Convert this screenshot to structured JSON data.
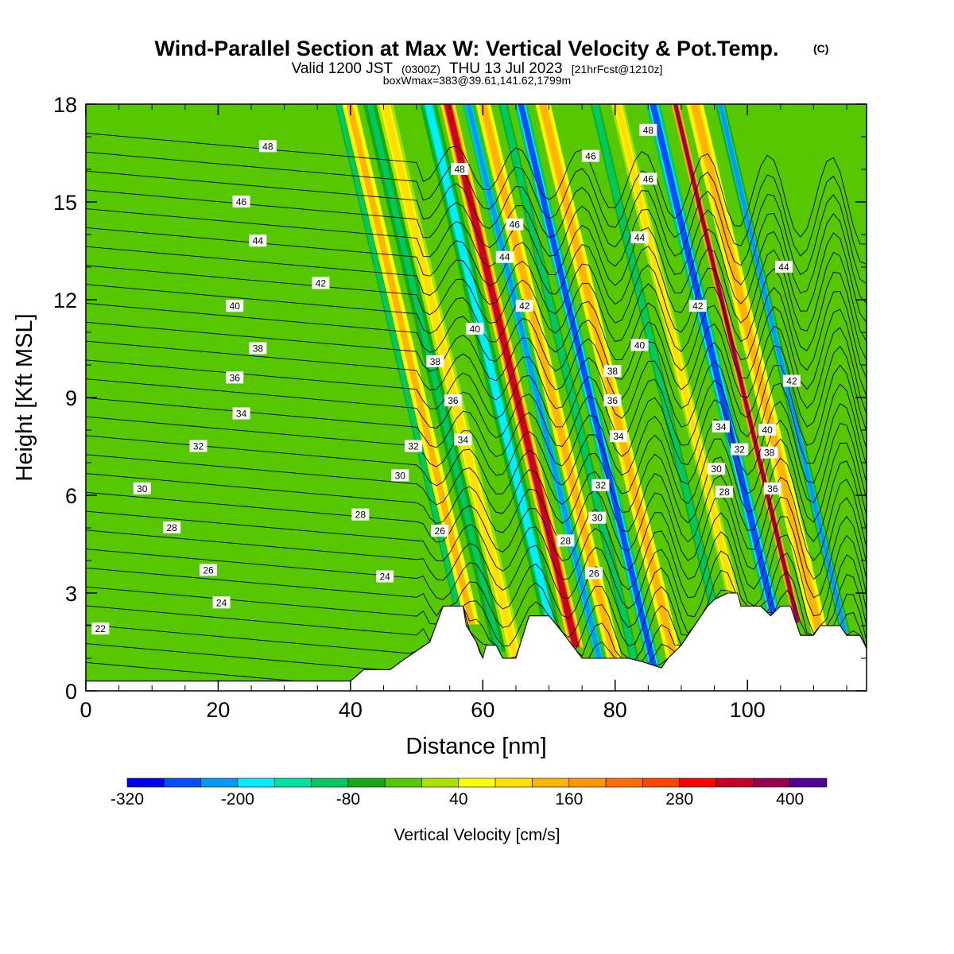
{
  "header": {
    "title": "Wind-Parallel Section at Max W: Vertical Velocity & Pot.Temp.",
    "title_mark": "(C)",
    "valid_prefix": "Valid 1200 JST",
    "valid_utc": "(0300Z)",
    "valid_date": "THU 13 Jul 2023",
    "forecast_info": "[21hrFcst@1210z]",
    "box_info": "boxWmax=383@39.61,141.62,1799m"
  },
  "chart_data": {
    "type": "heatmap",
    "xlabel": "Distance [nm]",
    "ylabel": "Height [Kft MSL]",
    "xlim": [
      0,
      118
    ],
    "ylim": [
      0,
      18
    ],
    "x_ticks": [
      0,
      20,
      40,
      60,
      80,
      100
    ],
    "y_ticks": [
      0,
      3,
      6,
      9,
      12,
      15,
      18
    ],
    "colorbar": {
      "title": "Vertical Velocity [cm/s]",
      "levels": [
        -320,
        -280,
        -240,
        -200,
        -160,
        -120,
        -80,
        -40,
        0,
        40,
        80,
        120,
        160,
        200,
        240,
        280,
        320,
        360,
        400,
        440
      ],
      "tick_labels": [
        -320,
        -200,
        -80,
        40,
        160,
        280,
        400
      ],
      "colors": [
        "#0000ee",
        "#0050ff",
        "#0099ff",
        "#00eeff",
        "#00e0a0",
        "#00c860",
        "#14aa14",
        "#55c800",
        "#aae100",
        "#ffff00",
        "#ffe000",
        "#ffb400",
        "#ff9600",
        "#ff6e00",
        "#ff4600",
        "#ff0000",
        "#c80028",
        "#960050",
        "#500096"
      ]
    },
    "vertical_velocity_bands": [
      {
        "x": 0,
        "w": 10,
        "h": 9
      },
      {
        "x": 9,
        "w": 2.5,
        "h": 6
      },
      {
        "x": 23,
        "w": 3,
        "h": 12
      },
      {
        "x": 30,
        "w": 1.5,
        "h": 12
      },
      {
        "x": 47,
        "w": 6,
        "h": 15
      },
      {
        "x": 55.5,
        "w": 1.8,
        "h": -90
      },
      {
        "x": 57.3,
        "w": 2.2,
        "h": 120
      },
      {
        "x": 61.5,
        "w": 2,
        "h": -120
      },
      {
        "x": 64,
        "w": 2.5,
        "h": 100
      },
      {
        "x": 69,
        "w": 2.5,
        "h": -180
      },
      {
        "x": 73,
        "w": 2.2,
        "h": 320
      },
      {
        "x": 77,
        "w": 1.7,
        "h": -240
      },
      {
        "x": 79,
        "w": 2.2,
        "h": 150
      },
      {
        "x": 82,
        "w": 2.2,
        "h": -100
      },
      {
        "x": 85,
        "w": 2,
        "h": -260
      },
      {
        "x": 88,
        "w": 2.3,
        "h": 150
      },
      {
        "x": 94,
        "w": 2.2,
        "h": -90
      },
      {
        "x": 97,
        "w": 2,
        "h": 110
      },
      {
        "x": 103,
        "w": 2.2,
        "h": -280
      },
      {
        "x": 107,
        "w": 1.2,
        "h": 383
      },
      {
        "x": 110,
        "w": 2.5,
        "h": 130
      },
      {
        "x": 114,
        "w": 1.5,
        "h": -210
      }
    ],
    "potential_temperature_labels": [
      {
        "t": "48",
        "x": 27.5,
        "y": 16.7
      },
      {
        "t": "46",
        "x": 23.5,
        "y": 15.0
      },
      {
        "t": "44",
        "x": 26.0,
        "y": 13.8
      },
      {
        "t": "42",
        "x": 35.5,
        "y": 12.5
      },
      {
        "t": "40",
        "x": 22.5,
        "y": 11.8
      },
      {
        "t": "38",
        "x": 26.0,
        "y": 10.5
      },
      {
        "t": "36",
        "x": 22.5,
        "y": 9.6
      },
      {
        "t": "34",
        "x": 23.5,
        "y": 8.5
      },
      {
        "t": "32",
        "x": 17.0,
        "y": 7.5
      },
      {
        "t": "30",
        "x": 8.5,
        "y": 6.2
      },
      {
        "t": "28",
        "x": 13.0,
        "y": 5.0
      },
      {
        "t": "26",
        "x": 18.5,
        "y": 3.7
      },
      {
        "t": "24",
        "x": 20.5,
        "y": 2.7
      },
      {
        "t": "22",
        "x": 2.2,
        "y": 1.9
      },
      {
        "t": "48",
        "x": 56.5,
        "y": 16.0
      },
      {
        "t": "46",
        "x": 64.8,
        "y": 14.3
      },
      {
        "t": "44",
        "x": 63.3,
        "y": 13.3
      },
      {
        "t": "42",
        "x": 66.3,
        "y": 11.8
      },
      {
        "t": "40",
        "x": 58.8,
        "y": 11.1
      },
      {
        "t": "38",
        "x": 52.8,
        "y": 10.1
      },
      {
        "t": "36",
        "x": 55.5,
        "y": 8.9
      },
      {
        "t": "34",
        "x": 57.0,
        "y": 7.7
      },
      {
        "t": "32",
        "x": 49.5,
        "y": 7.5
      },
      {
        "t": "30",
        "x": 47.5,
        "y": 6.6
      },
      {
        "t": "28",
        "x": 41.5,
        "y": 5.4
      },
      {
        "t": "26",
        "x": 53.5,
        "y": 4.9
      },
      {
        "t": "24",
        "x": 45.2,
        "y": 3.5
      },
      {
        "t": "46",
        "x": 76.3,
        "y": 16.4
      },
      {
        "t": "48",
        "x": 85.0,
        "y": 17.2
      },
      {
        "t": "46",
        "x": 85.0,
        "y": 15.7
      },
      {
        "t": "44",
        "x": 83.7,
        "y": 13.9
      },
      {
        "t": "40",
        "x": 83.7,
        "y": 10.6
      },
      {
        "t": "38",
        "x": 79.6,
        "y": 9.8
      },
      {
        "t": "36",
        "x": 79.6,
        "y": 8.9
      },
      {
        "t": "34",
        "x": 80.5,
        "y": 7.8
      },
      {
        "t": "32",
        "x": 77.8,
        "y": 6.3
      },
      {
        "t": "30",
        "x": 77.3,
        "y": 5.3
      },
      {
        "t": "28",
        "x": 72.5,
        "y": 4.6
      },
      {
        "t": "26",
        "x": 76.8,
        "y": 3.6
      },
      {
        "t": "42",
        "x": 92.5,
        "y": 11.8
      },
      {
        "t": "44",
        "x": 105.5,
        "y": 13.0
      },
      {
        "t": "42",
        "x": 106.7,
        "y": 9.5
      },
      {
        "t": "40",
        "x": 103.0,
        "y": 8.0
      },
      {
        "t": "38",
        "x": 103.3,
        "y": 7.3
      },
      {
        "t": "36",
        "x": 103.8,
        "y": 6.2
      },
      {
        "t": "34",
        "x": 96.0,
        "y": 8.1
      },
      {
        "t": "32",
        "x": 98.8,
        "y": 7.4
      },
      {
        "t": "30",
        "x": 95.3,
        "y": 6.8
      },
      {
        "t": "28",
        "x": 96.5,
        "y": 6.1
      }
    ],
    "terrain": [
      [
        0,
        0.3
      ],
      [
        40,
        0.3
      ],
      [
        42,
        0.65
      ],
      [
        46,
        0.65
      ],
      [
        48,
        0.95
      ],
      [
        52,
        1.5
      ],
      [
        54,
        2.6
      ],
      [
        57,
        2.6
      ],
      [
        57.5,
        2.0
      ],
      [
        59,
        1.5
      ],
      [
        59.5,
        1.2
      ],
      [
        60,
        1.0
      ],
      [
        60.5,
        1.4
      ],
      [
        62,
        1.4
      ],
      [
        63,
        1.0
      ],
      [
        65,
        1.0
      ],
      [
        67,
        2.3
      ],
      [
        70,
        2.3
      ],
      [
        72,
        1.8
      ],
      [
        75,
        1.0
      ],
      [
        80,
        1.0
      ],
      [
        82,
        1.0
      ],
      [
        84,
        0.9
      ],
      [
        87,
        0.7
      ],
      [
        88,
        1.0
      ],
      [
        89,
        1.2
      ],
      [
        90,
        1.4
      ],
      [
        91,
        1.7
      ],
      [
        92,
        2.0
      ],
      [
        93,
        2.3
      ],
      [
        94,
        2.6
      ],
      [
        95,
        2.8
      ],
      [
        97,
        3.0
      ],
      [
        98.5,
        3.0
      ],
      [
        99,
        2.6
      ],
      [
        102,
        2.6
      ],
      [
        103.5,
        2.3
      ],
      [
        105,
        2.6
      ],
      [
        106.5,
        2.6
      ],
      [
        108,
        1.7
      ],
      [
        110,
        1.7
      ],
      [
        111,
        2.0
      ],
      [
        114,
        2.0
      ],
      [
        115,
        1.7
      ],
      [
        117,
        1.7
      ],
      [
        118,
        1.3
      ]
    ]
  }
}
